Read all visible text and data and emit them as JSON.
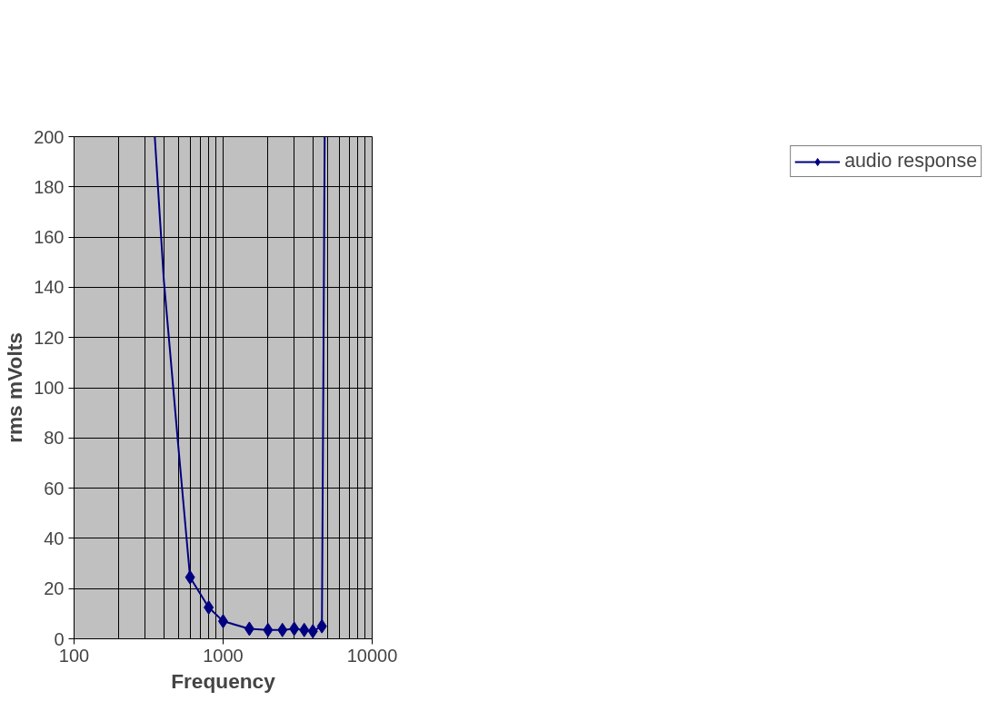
{
  "chart_data": {
    "type": "line",
    "xlabel": "Frequency",
    "ylabel": "rms mVolts",
    "log": "x",
    "xlim": [
      100,
      10000
    ],
    "xticks": [
      100,
      1000,
      10000
    ],
    "ylim": [
      0,
      200
    ],
    "yticks": [
      0,
      20,
      40,
      60,
      80,
      100,
      120,
      140,
      160,
      180,
      200
    ],
    "grid": true,
    "legend": "right",
    "line_style": "solid",
    "series": [
      {
        "name": "audio response",
        "color": "#000080",
        "marker": "diamond",
        "x": [
          600,
          800,
          1000,
          1500,
          2000,
          2500,
          3000,
          3500,
          4000,
          4600
        ],
        "values": [
          24.5,
          12.5,
          7,
          4,
          3.5,
          3.5,
          4,
          3.5,
          3,
          5
        ]
      },
      {
        "color": "#000080",
        "marker": "none",
        "x": [
          348,
          400,
          500,
          600
        ],
        "values": [
          200,
          143,
          77,
          24.5
        ]
      },
      {
        "color": "#000080",
        "marker": "none",
        "x": [
          4600,
          4700,
          4800
        ],
        "values": [
          5,
          100,
          200
        ]
      }
    ]
  }
}
